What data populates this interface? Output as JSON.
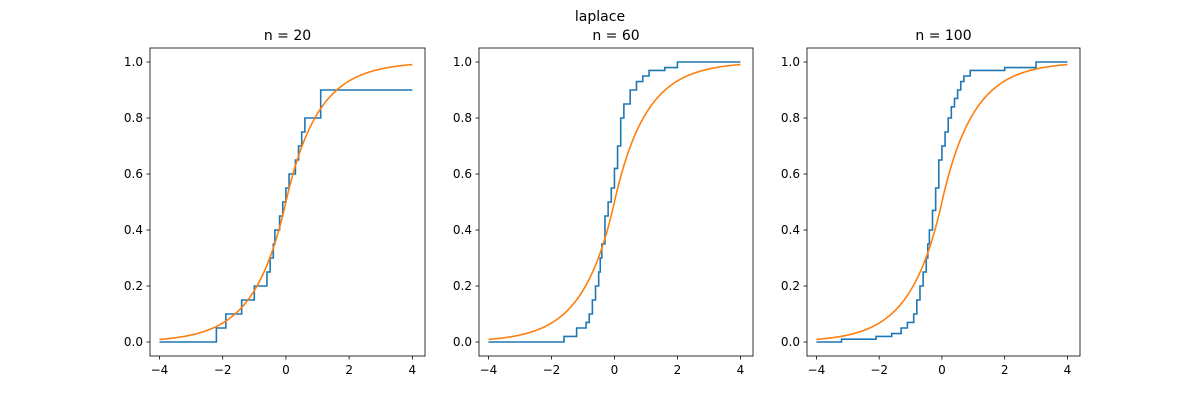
{
  "figure": {
    "suptitle": "laplace"
  },
  "colors": {
    "ecdf": "#1f77b4",
    "cdf": "#ff7f0e",
    "axes": "#000000",
    "background": "#ffffff"
  },
  "chart_data": [
    {
      "type": "line",
      "title": "n = 20",
      "xlim": [
        -4.3,
        4.4
      ],
      "ylim": [
        -0.05,
        1.05
      ],
      "xticks": [
        -4,
        -2,
        0,
        2,
        4
      ],
      "yticks": [
        0.0,
        0.2,
        0.4,
        0.6,
        0.8,
        1.0
      ],
      "grid": false,
      "series": [
        {
          "kind": "ecdf_step",
          "x": [
            -4,
            -2.2,
            -2.2,
            -1.9,
            -1.9,
            -1.4,
            -1.4,
            -1.0,
            -1.0,
            -0.6,
            -0.6,
            -0.5,
            -0.5,
            -0.4,
            -0.4,
            -0.35,
            -0.35,
            -0.2,
            -0.2,
            -0.1,
            -0.1,
            0.0,
            0.0,
            0.1,
            0.1,
            0.3,
            0.3,
            0.4,
            0.4,
            0.5,
            0.5,
            0.6,
            0.6,
            1.1,
            1.1,
            4
          ],
          "y": [
            0.0,
            0.0,
            0.05,
            0.05,
            0.1,
            0.1,
            0.15,
            0.15,
            0.2,
            0.2,
            0.25,
            0.25,
            0.3,
            0.3,
            0.35,
            0.35,
            0.4,
            0.4,
            0.45,
            0.45,
            0.5,
            0.5,
            0.55,
            0.55,
            0.6,
            0.6,
            0.65,
            0.65,
            0.7,
            0.7,
            0.75,
            0.75,
            0.8,
            0.8,
            0.9,
            0.9
          ]
        }
      ]
    },
    {
      "type": "line",
      "title": "n = 60",
      "xlim": [
        -4.3,
        4.4
      ],
      "ylim": [
        -0.05,
        1.05
      ],
      "xticks": [
        -4,
        -2,
        0,
        2,
        4
      ],
      "yticks": [
        0.0,
        0.2,
        0.4,
        0.6,
        0.8,
        1.0
      ],
      "grid": false,
      "series": [
        {
          "kind": "ecdf_step",
          "x": [
            -4,
            -3.0,
            -1.6,
            -1.2,
            -0.9,
            -0.8,
            -0.7,
            -0.6,
            -0.5,
            -0.45,
            -0.4,
            -0.3,
            -0.2,
            -0.1,
            0.0,
            0.1,
            0.2,
            0.3,
            0.5,
            0.7,
            0.9,
            1.1,
            1.6,
            2.0,
            4
          ],
          "y": [
            0.0,
            0.0,
            0.02,
            0.05,
            0.07,
            0.1,
            0.15,
            0.2,
            0.25,
            0.3,
            0.35,
            0.45,
            0.5,
            0.55,
            0.62,
            0.7,
            0.8,
            0.85,
            0.9,
            0.93,
            0.95,
            0.97,
            0.98,
            1.0,
            1.0
          ]
        }
      ]
    },
    {
      "type": "line",
      "title": "n = 100",
      "xlim": [
        -4.3,
        4.4
      ],
      "ylim": [
        -0.05,
        1.05
      ],
      "xticks": [
        -4,
        -2,
        0,
        2,
        4
      ],
      "yticks": [
        0.0,
        0.2,
        0.4,
        0.6,
        0.8,
        1.0
      ],
      "grid": false,
      "series": [
        {
          "kind": "ecdf_step",
          "x": [
            -4,
            -3.2,
            -2.1,
            -1.6,
            -1.3,
            -1.1,
            -0.9,
            -0.8,
            -0.7,
            -0.6,
            -0.5,
            -0.45,
            -0.4,
            -0.3,
            -0.2,
            -0.1,
            0.0,
            0.1,
            0.2,
            0.3,
            0.4,
            0.5,
            0.6,
            0.7,
            0.9,
            1.1,
            2.0,
            3.0,
            4
          ],
          "y": [
            0.0,
            0.01,
            0.02,
            0.03,
            0.05,
            0.07,
            0.1,
            0.15,
            0.2,
            0.25,
            0.3,
            0.35,
            0.4,
            0.47,
            0.55,
            0.65,
            0.7,
            0.75,
            0.8,
            0.84,
            0.87,
            0.9,
            0.93,
            0.95,
            0.97,
            0.97,
            0.98,
            1.0,
            1.0
          ]
        }
      ]
    }
  ]
}
